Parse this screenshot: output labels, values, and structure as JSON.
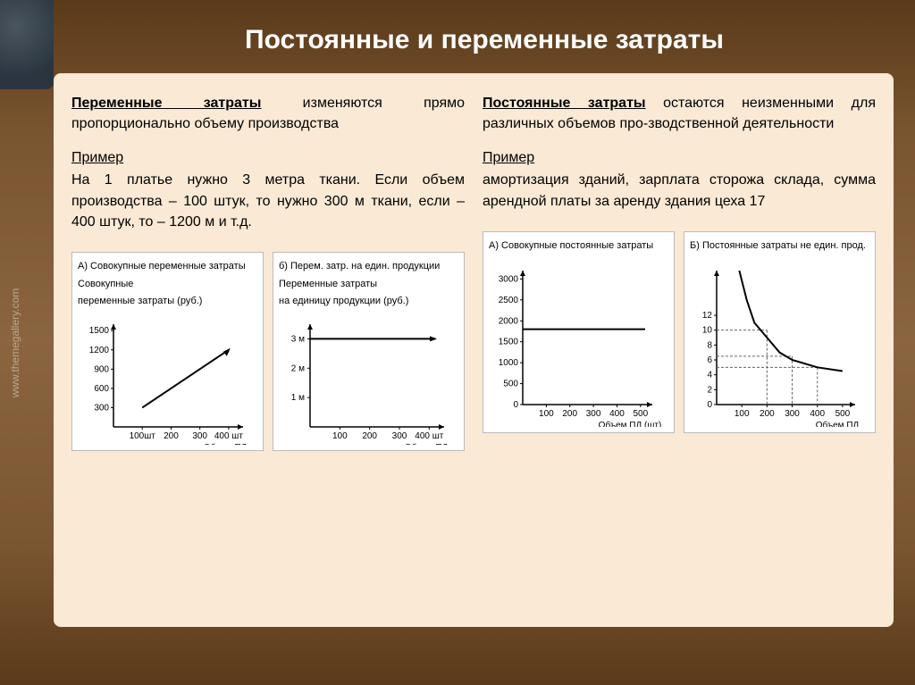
{
  "title": "Постоянные и переменные затраты",
  "watermark": "www.themegallery.com",
  "left": {
    "term": "Переменные затраты",
    "defn_rest": " изменяются прямо пропорционально объему производства",
    "example_label": "Пример",
    "example_body": "На 1 платье нужно 3 метра ткани. Если объем производства – 100 штук, то нужно 300 м ткани, если – 400 штук, то – 1200 м и т.д.",
    "chartA": {
      "title": "А) Совокупные переменные затраты",
      "sub1": "Совокупные",
      "sub2": "переменные затраты (руб.)",
      "y_ticks": [
        300,
        600,
        900,
        1200,
        1500
      ],
      "x_ticks": [
        "100шт",
        "200",
        "300",
        "400 шт"
      ],
      "x_axis_label": "Объем ПД",
      "line_start": [
        100,
        300
      ],
      "line_end": [
        400,
        1200
      ],
      "ylim": [
        0,
        1600
      ],
      "xlim": [
        0,
        450
      ]
    },
    "chartB": {
      "title": "б) Перем. затр. на един. продукции",
      "sub1": "Переменные затраты",
      "sub2": "на единицу продукции (руб.)",
      "y_ticks": [
        "1 м",
        "2 м",
        "3 м"
      ],
      "x_ticks": [
        "100",
        "200",
        "300",
        "400 шт"
      ],
      "x_axis_label": "Объем ПД",
      "const_y": 3,
      "ylim": [
        0,
        3.5
      ],
      "xlim": [
        0,
        450
      ]
    }
  },
  "right": {
    "term": "Постоянные затраты",
    "defn_rest": " остаются неизменными для различных объемов про-зводственной деятельности",
    "example_label": "Пример",
    "example_body": "амортизация зданий, зарплата сторожа склада, сумма арендной платы за аренду здания цеха 17",
    "chartA": {
      "title": "А) Совокупные постоянные затраты",
      "y_ticks": [
        0,
        500,
        1000,
        1500,
        2000,
        2500,
        3000
      ],
      "x_ticks": [
        "100",
        "200",
        "300",
        "400",
        "500"
      ],
      "x_axis_label": "Объем ПД (шт)",
      "const_y": 1800,
      "ylim": [
        0,
        3200
      ],
      "xlim": [
        0,
        550
      ]
    },
    "chartB": {
      "title": "Б) Постоянные затраты не един. прод.",
      "y_ticks": [
        0,
        2,
        4,
        6,
        8,
        10,
        12
      ],
      "x_ticks": [
        "100",
        "200",
        "300",
        "400",
        "500"
      ],
      "x_axis_label": "Объем ПД",
      "curve": [
        [
          90,
          18
        ],
        [
          120,
          14
        ],
        [
          150,
          11
        ],
        [
          200,
          9
        ],
        [
          250,
          7
        ],
        [
          300,
          6
        ],
        [
          400,
          5
        ],
        [
          500,
          4.5
        ]
      ],
      "dash_refs": [
        [
          200,
          10
        ],
        [
          300,
          6.5
        ],
        [
          400,
          5
        ]
      ],
      "ylim": [
        0,
        18
      ],
      "xlim": [
        0,
        550
      ]
    }
  },
  "colors": {
    "axis": "#000000",
    "line": "#000000",
    "dash": "#666666",
    "chart_bg": "#ffffff",
    "content_bg": "#fae9d5"
  }
}
